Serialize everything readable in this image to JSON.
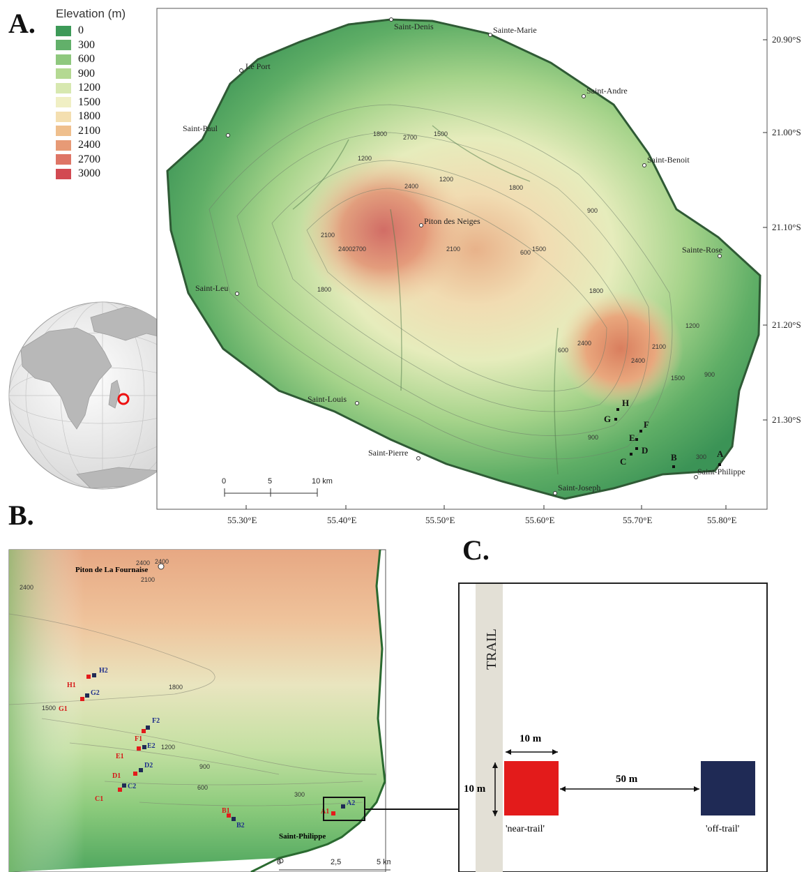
{
  "panels": {
    "a": "A.",
    "b": "B.",
    "c": "C."
  },
  "legend": {
    "title": "Elevation (m)",
    "items": [
      {
        "label": "0",
        "color": "#3d9a58"
      },
      {
        "label": "300",
        "color": "#62b06a"
      },
      {
        "label": "600",
        "color": "#8fc87e"
      },
      {
        "label": "900",
        "color": "#b4d992"
      },
      {
        "label": "1200",
        "color": "#d7e8b0"
      },
      {
        "label": "1500",
        "color": "#f0efc4"
      },
      {
        "label": "1800",
        "color": "#f4dfb0"
      },
      {
        "label": "2100",
        "color": "#efbf8d"
      },
      {
        "label": "2400",
        "color": "#e79a76"
      },
      {
        "label": "2700",
        "color": "#de7566"
      },
      {
        "label": "3000",
        "color": "#d24a52"
      }
    ]
  },
  "map_a": {
    "lat_ticks": [
      "20.90°S",
      "21.00°S",
      "21.10°S",
      "21.20°S",
      "21.30°S"
    ],
    "lon_ticks": [
      "55.30°E",
      "55.40°E",
      "55.50°E",
      "55.60°E",
      "55.70°E",
      "55.80°E"
    ],
    "towns": [
      {
        "name": "Saint-Denis"
      },
      {
        "name": "Sainte-Marie"
      },
      {
        "name": "Le Port"
      },
      {
        "name": "Saint-Andre"
      },
      {
        "name": "Saint-Paul"
      },
      {
        "name": "Saint-Benoit"
      },
      {
        "name": "Piton des Neiges"
      },
      {
        "name": "Sainte-Rose"
      },
      {
        "name": "Saint-Leu"
      },
      {
        "name": "Saint-Louis"
      },
      {
        "name": "Saint-Pierre"
      },
      {
        "name": "Saint-Joseph"
      },
      {
        "name": "Saint-Philippe"
      }
    ],
    "sites": [
      "A",
      "B",
      "C",
      "D",
      "E",
      "F",
      "G",
      "H"
    ],
    "contours": [
      "1800",
      "2700",
      "1500",
      "1200",
      "1200",
      "1800",
      "900",
      "2100",
      "2400",
      "2700",
      "1800",
      "2100",
      "1500",
      "600",
      "1800",
      "1200",
      "2400",
      "2400",
      "2100",
      "1500",
      "900",
      "300",
      "900",
      "600",
      "2400"
    ],
    "scale": {
      "ticks": [
        "0",
        "5",
        "10 km"
      ]
    }
  },
  "map_b": {
    "volcano": "Piton de La Fournaise",
    "town": "Saint-Philippe",
    "near_sites": [
      "A1",
      "B1",
      "C1",
      "D1",
      "E1",
      "F1",
      "G1",
      "H1"
    ],
    "off_sites": [
      "A2",
      "B2",
      "C2",
      "D2",
      "E2",
      "F2",
      "G2",
      "H2"
    ],
    "contours": [
      "2400",
      "2400",
      "2100",
      "2400",
      "1800",
      "1500",
      "1200",
      "900",
      "600",
      "300"
    ],
    "scale": {
      "ticks": [
        "0",
        "2,5",
        "5 km"
      ]
    }
  },
  "diagram_c": {
    "trail": "TRAIL",
    "width_label": "10 m",
    "height_label": "10 m",
    "distance_label": "50 m",
    "near_label": "'near-trail'",
    "off_label": "'off-trail'",
    "near_color": "#e31b1b",
    "off_color": "#1f2a55"
  }
}
